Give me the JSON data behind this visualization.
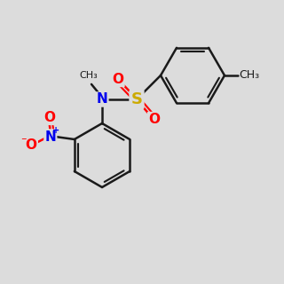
{
  "background_color": "#dcdcdc",
  "bond_color": "#1a1a1a",
  "bond_width": 1.8,
  "dbo": 0.13,
  "atom_colors": {
    "N": "#0000ee",
    "O": "#ff0000",
    "S": "#ccaa00",
    "C": "#1a1a1a"
  },
  "fs": 11,
  "fs_small": 9
}
